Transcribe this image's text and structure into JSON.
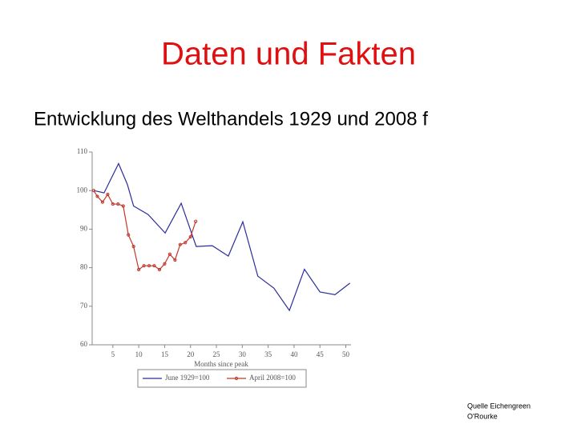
{
  "slide": {
    "title": "Daten und Fakten",
    "subtitle": "Entwicklung des Welthandels 1929 und 2008 f",
    "source": [
      "Quelle Eichengreen",
      "O'Rourke"
    ]
  },
  "chart_data": {
    "type": "line",
    "x_label": "Months since peak",
    "xlim": [
      1,
      51
    ],
    "xticks": [
      5,
      10,
      15,
      20,
      25,
      30,
      35,
      40,
      45,
      50
    ],
    "ylim": [
      60,
      110
    ],
    "yticks": [
      60,
      70,
      80,
      90,
      100,
      110
    ],
    "series": [
      {
        "name": "June 1929=100",
        "color": "#2a2d9c",
        "markers": false,
        "x": [
          1.3,
          3.3,
          6.1,
          7.8,
          9,
          11.8,
          15.1,
          18.2,
          21.1,
          24.2,
          27.3,
          30.1,
          33,
          36.1,
          39.1,
          42,
          45,
          47.9,
          50.8
        ],
        "values": [
          100,
          99.4,
          107,
          101.6,
          96,
          93.8,
          89,
          96.7,
          85.5,
          85.7,
          83,
          91.9,
          77.8,
          74.7,
          68.9,
          79.6,
          73.7,
          73,
          76
        ]
      },
      {
        "name": "April 2008=100",
        "color": "#c0392b",
        "markers": true,
        "x": [
          1.3,
          2,
          3,
          4,
          5,
          6,
          7,
          8,
          9,
          10,
          11,
          12,
          13,
          14,
          15,
          16,
          17,
          18,
          19,
          20,
          21
        ],
        "values": [
          100,
          98.5,
          97,
          99,
          96.5,
          96.5,
          96,
          88.5,
          85.5,
          79.5,
          80.5,
          80.5,
          80.5,
          79.5,
          81,
          83.5,
          82,
          86,
          86.5,
          88,
          92
        ]
      }
    ]
  }
}
